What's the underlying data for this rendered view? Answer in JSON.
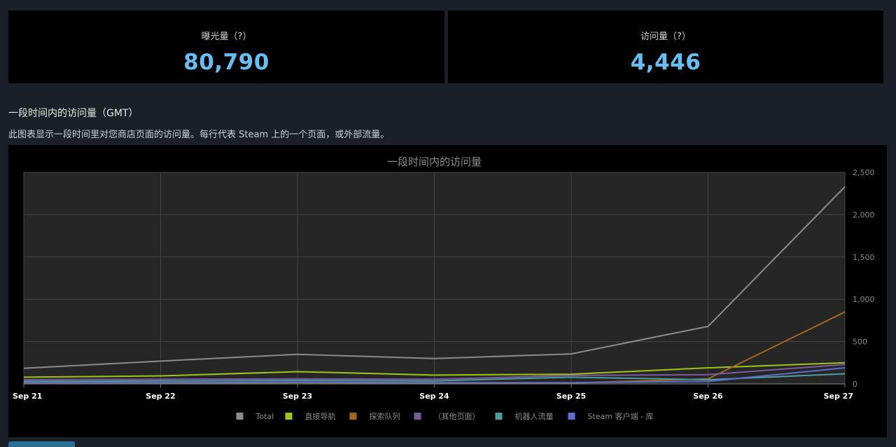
{
  "stats": {
    "impressions": {
      "label": "曝光量（?）",
      "value": "80,790"
    },
    "visits": {
      "label": "访问量（?）",
      "value": "4,446"
    }
  },
  "section": {
    "title": "一段时间内的访问量（GMT）",
    "description": "此图表显示一段时间里对您商店页面的访问量。每行代表 Steam 上的一个页面，或外部流量。"
  },
  "chart_data": {
    "type": "line",
    "title": "一段时间内的访问量",
    "x": [
      "Sep 21",
      "Sep 22",
      "Sep 23",
      "Sep 24",
      "Sep 25",
      "Sep 26",
      "Sep 27"
    ],
    "ylim": [
      0,
      2500
    ],
    "yticks": [
      0,
      500,
      1000,
      1500,
      2000,
      2500
    ],
    "ytick_labels": [
      "0",
      "500",
      "1,000",
      "1,500",
      "2,000",
      "2,500"
    ],
    "grid": true,
    "legend_position": "bottom",
    "series": [
      {
        "name": "Total",
        "color": "#8c8c8c",
        "values": [
          185,
          270,
          350,
          300,
          355,
          680,
          2330
        ]
      },
      {
        "name": "直接导航",
        "color": "#9ec41a",
        "values": [
          80,
          95,
          145,
          105,
          115,
          190,
          250
        ]
      },
      {
        "name": "探索队列",
        "color": "#a5661a",
        "values": [
          10,
          10,
          15,
          10,
          10,
          60,
          850
        ]
      },
      {
        "name": "（其他页面）",
        "color": "#7a5c9e",
        "values": [
          50,
          55,
          60,
          55,
          100,
          110,
          230
        ]
      },
      {
        "name": "机器人流量",
        "color": "#4e9ea0",
        "values": [
          30,
          35,
          40,
          35,
          80,
          50,
          120
        ]
      },
      {
        "name": "Steam 客户端 - 库",
        "color": "#5c6fd0",
        "values": [
          15,
          15,
          20,
          15,
          15,
          30,
          190
        ]
      }
    ]
  }
}
